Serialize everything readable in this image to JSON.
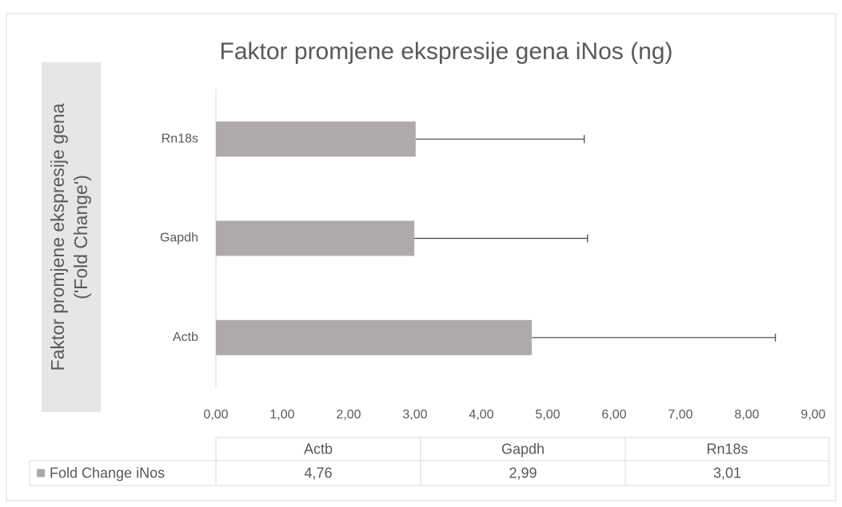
{
  "chart_data": {
    "type": "bar",
    "orientation": "horizontal",
    "title": "Faktor promjene ekspresije gena iNos (ng)",
    "y_label": [
      "Faktor promjene ekspresije gena",
      "('Fold Change')"
    ],
    "categories": [
      "Actb",
      "Gapdh",
      "Rn18s"
    ],
    "series": [
      {
        "name": "Fold Change iNos",
        "color": "#aeaaaa",
        "values": [
          4.76,
          2.99,
          3.01
        ],
        "value_labels": [
          "4,76",
          "2,99",
          "3,01"
        ],
        "errors": [
          3.67,
          2.61,
          2.54
        ]
      }
    ],
    "xlim": [
      0,
      9
    ],
    "xticks": [
      {
        "value": 0,
        "label": "0,00"
      },
      {
        "value": 1,
        "label": "1,00"
      },
      {
        "value": 2,
        "label": "2,00"
      },
      {
        "value": 3,
        "label": "3,00"
      },
      {
        "value": 4,
        "label": "4,00"
      },
      {
        "value": 5,
        "label": "5,00"
      },
      {
        "value": 6,
        "label": "6,00"
      },
      {
        "value": 7,
        "label": "7,00"
      },
      {
        "value": 8,
        "label": "8,00"
      },
      {
        "value": 9,
        "label": "9,00"
      }
    ],
    "data_table": true
  }
}
